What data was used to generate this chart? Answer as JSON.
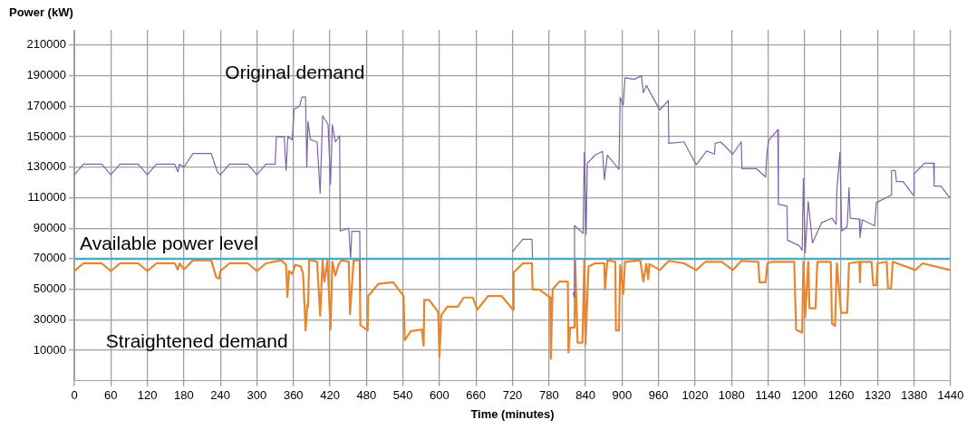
{
  "chart_data": {
    "type": "line",
    "xlabel": "Time (minutes)",
    "ylabel": "Power (kW)",
    "xlim": [
      0,
      1440
    ],
    "xticks": [
      0,
      60,
      120,
      180,
      240,
      300,
      360,
      420,
      480,
      540,
      600,
      660,
      720,
      780,
      840,
      900,
      960,
      1020,
      1080,
      1140,
      1200,
      1260,
      1320,
      1380,
      1440
    ],
    "ylim": [
      -10000,
      220000
    ],
    "yticks": [
      10000,
      30000,
      50000,
      70000,
      90000,
      110000,
      130000,
      150000,
      170000,
      190000,
      210000
    ],
    "grid": true,
    "legend": false,
    "marker": "none",
    "line_style": "solid",
    "ref_lines": [
      {
        "axis": "y",
        "value": 70000,
        "label": "Available power level",
        "color": "#4bacc6"
      }
    ],
    "series": [
      {
        "name": "Original demand",
        "color": "#7f64a8",
        "x": [
          0,
          15,
          45,
          60,
          75,
          105,
          120,
          135,
          165,
          170,
          173,
          180,
          195,
          225,
          235,
          240,
          255,
          285,
          300,
          315,
          330,
          332,
          345,
          348,
          351,
          358,
          361,
          370,
          374,
          380,
          382,
          384,
          388,
          399,
          404,
          408,
          417,
          421,
          424,
          429,
          436,
          437,
          451,
          454,
          456,
          469,
          470,
          475,
          720,
          737,
          752,
          753,
          780,
          820,
          821,
          822,
          836,
          838,
          841,
          843,
          856,
          868,
          871,
          876,
          895,
          897,
          902,
          905,
          920,
          932,
          935,
          940,
          962,
          976,
          977,
          1002,
          1022,
          1039,
          1052,
          1053,
          1062,
          1082,
          1096,
          1097,
          1121,
          1136,
          1138,
          1141,
          1156,
          1157,
          1171,
          1172,
          1191,
          1196,
          1198,
          1201,
          1206,
          1213,
          1228,
          1245,
          1252,
          1253,
          1258,
          1261,
          1270,
          1273,
          1275,
          1290,
          1291,
          1295,
          1315,
          1318,
          1342,
          1343,
          1349,
          1351,
          1362,
          1379,
          1380,
          1397,
          1412,
          1413,
          1424,
          1439
        ],
        "values": [
          125000,
          132000,
          132000,
          125000,
          132000,
          132000,
          125000,
          132000,
          132000,
          127000,
          132000,
          130000,
          139000,
          139000,
          127000,
          125000,
          132000,
          132000,
          125000,
          132000,
          132000,
          150000,
          150000,
          128000,
          150000,
          148000,
          168000,
          170000,
          176000,
          176000,
          130000,
          160000,
          148000,
          146600,
          112800,
          163800,
          158000,
          118800,
          157800,
          146600,
          150600,
          88200,
          90000,
          70000,
          88000,
          88000,
          48600,
          null,
          74600,
          82800,
          82800,
          70000,
          null,
          48000,
          45000,
          91800,
          86600,
          139800,
          86000,
          132600,
          138000,
          140400,
          121800,
          138000,
          128600,
          175800,
          170600,
          188600,
          187600,
          189800,
          178800,
          183600,
          167600,
          173600,
          145600,
          146600,
          131600,
          140600,
          138600,
          145600,
          146600,
          138600,
          146600,
          129000,
          129000,
          123600,
          138600,
          147600,
          154600,
          105600,
          104600,
          82200,
          78600,
          75600,
          122600,
          73800,
          107600,
          80400,
          93600,
          96600,
          92600,
          114600,
          139600,
          88200,
          91000,
          116600,
          96600,
          96000,
          84000,
          95600,
          91600,
          106800,
          111600,
          127800,
          127800,
          120600,
          120600,
          111600,
          125600,
          132600,
          132600,
          117600,
          117600,
          109800
        ]
      },
      {
        "name": "Straightened demand",
        "color": "#e8862f",
        "x": [
          0,
          15,
          45,
          60,
          75,
          105,
          120,
          135,
          165,
          170,
          173,
          180,
          195,
          225,
          233,
          238,
          240,
          255,
          285,
          300,
          315,
          340,
          348,
          350,
          353,
          358,
          363,
          372,
          376,
          380,
          383,
          384,
          386,
          399,
          404,
          408,
          411,
          416,
          421,
          424,
          429,
          434,
          439,
          451,
          453,
          459,
          469,
          470,
          482,
          483,
          500,
          524,
          541,
          543,
          553,
          571,
          574,
          575,
          583,
          598,
          600,
          603,
          613,
          630,
          640,
          655,
          662,
          680,
          702,
          721,
          722,
          737,
          752,
          753,
          764,
          782,
          783,
          786,
          797,
          811,
          812,
          815,
          822,
          823,
          827,
          835,
          838,
          840,
          845,
          856,
          871,
          872,
          876,
          889,
          890,
          895,
          897,
          902,
          905,
          930,
          935,
          940,
          943,
          945,
          962,
          977,
          1002,
          1022,
          1037,
          1064,
          1082,
          1096,
          1124,
          1126,
          1136,
          1139,
          1146,
          1183,
          1186,
          1196,
          1198,
          1201,
          1206,
          1208,
          1218,
          1221,
          1243,
          1245,
          1250,
          1253,
          1260,
          1270,
          1273,
          1290,
          1291,
          1292,
          1310,
          1313,
          1318,
          1320,
          1335,
          1337,
          1342,
          1345,
          1382,
          1394,
          1439
        ],
        "values": [
          62000,
          67000,
          67000,
          62000,
          67000,
          67000,
          62000,
          67000,
          67000,
          63000,
          67000,
          63000,
          69000,
          69000,
          58000,
          57000,
          62000,
          67000,
          67000,
          62000,
          67000,
          69000,
          66000,
          45000,
          62000,
          60000,
          66000,
          65000,
          60000,
          23000,
          40000,
          38600,
          69400,
          68000,
          32600,
          69000,
          55000,
          69000,
          23600,
          68000,
          59000,
          66000,
          69000,
          68000,
          33600,
          69000,
          69000,
          26600,
          23000,
          45600,
          53600,
          54600,
          45600,
          16600,
          22600,
          23600,
          13000,
          43000,
          43000,
          35000,
          5600,
          33000,
          38600,
          38600,
          44600,
          44600,
          36600,
          45600,
          45600,
          36600,
          61000,
          67000,
          67000,
          49800,
          49800,
          44600,
          4400,
          50000,
          55000,
          55000,
          8600,
          25000,
          25000,
          70000,
          15000,
          15000,
          69000,
          14000,
          65000,
          67000,
          67000,
          50000,
          69000,
          68000,
          23000,
          23000,
          66000,
          47000,
          68000,
          69000,
          55000,
          66600,
          56600,
          66600,
          62600,
          68600,
          67000,
          62600,
          68000,
          68000,
          62600,
          68600,
          68000,
          54600,
          54600,
          67000,
          68000,
          68000,
          23600,
          21600,
          68000,
          31600,
          68000,
          37600,
          37600,
          68000,
          68000,
          27600,
          26000,
          67000,
          34600,
          34600,
          67000,
          68000,
          54600,
          68000,
          68000,
          52600,
          52600,
          67000,
          68000,
          50600,
          50600,
          68000,
          62600,
          67000,
          62600
        ]
      }
    ]
  }
}
